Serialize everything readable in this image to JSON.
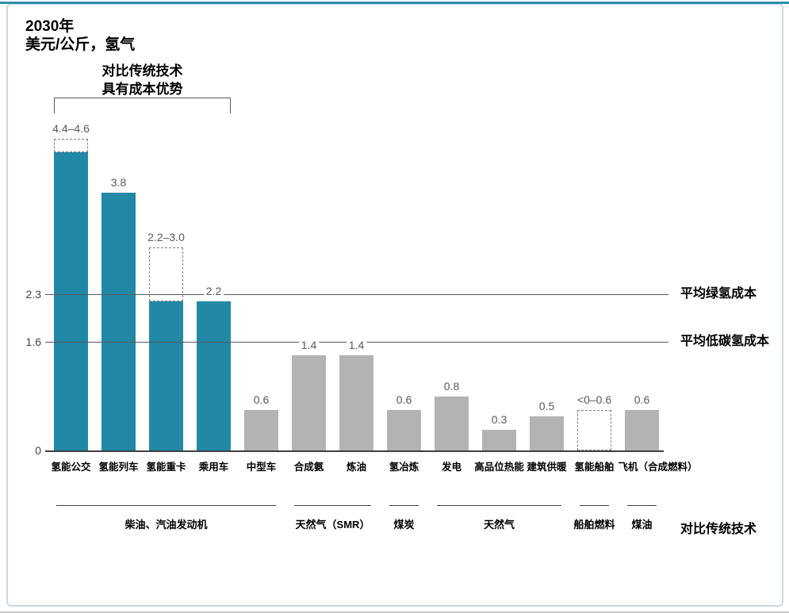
{
  "frame": {
    "top_accent_color": "#2E8FA8",
    "panel_border_color": "#C5D9E8",
    "bottom_line_color": "#CACACA"
  },
  "header": {
    "title_line1": "2030年",
    "title_line2": "美元/公斤，氢气"
  },
  "annotation": {
    "line1": "对比传统技术",
    "line2": "具有成本优势"
  },
  "bracket": {
    "from_bar": 0,
    "to_bar": 3
  },
  "chart_data": {
    "type": "bar",
    "title": "2030年",
    "subtitle": "美元/公斤，氢气",
    "ylabel": "美元/公斤，氢气",
    "ylim": [
      0,
      4.8
    ],
    "grid": false,
    "colors": {
      "highlight": "#2189A6",
      "normal": "#B3B3B3",
      "dash_outline": "#7F7F7F",
      "line": "#595959",
      "axis": "#404040"
    },
    "bars": [
      {
        "label": "氢能公交",
        "value_label": "4.4–4.6",
        "solid": 4.4,
        "dash_from": 4.4,
        "dash_to": 4.6,
        "style": "highlight"
      },
      {
        "label": "氢能列车",
        "value_label": "3.8",
        "solid": 3.8,
        "style": "highlight"
      },
      {
        "label": "氢能重卡",
        "value_label": "2.2–3.0",
        "solid": 2.2,
        "dash_from": 2.2,
        "dash_to": 3.0,
        "style": "highlight"
      },
      {
        "label": "乘用车",
        "value_label": "2.2",
        "solid": 2.2,
        "style": "highlight"
      },
      {
        "label": "中型车",
        "value_label": "0.6",
        "solid": 0.6,
        "style": "normal"
      },
      {
        "label": "合成氨",
        "value_label": "1.4",
        "solid": 1.4,
        "style": "normal"
      },
      {
        "label": "炼油",
        "value_label": "1.4",
        "solid": 1.4,
        "style": "normal"
      },
      {
        "label": "氢冶炼",
        "value_label": "0.6",
        "solid": 0.6,
        "style": "normal"
      },
      {
        "label": "发电",
        "value_label": "0.8",
        "solid": 0.8,
        "style": "normal"
      },
      {
        "label": "高品位热能",
        "value_label": "0.3",
        "solid": 0.3,
        "style": "normal"
      },
      {
        "label": "建筑供暖",
        "value_label": "0.5",
        "solid": 0.5,
        "style": "normal"
      },
      {
        "label": "氢能船舶",
        "value_label": "<0–0.6",
        "solid": 0,
        "dash_from": 0,
        "dash_to": 0.6,
        "style": "outline"
      },
      {
        "label": "飞机（合成燃料）",
        "value_label": "0.6",
        "solid": 0.6,
        "style": "normal"
      }
    ],
    "ref_lines": [
      {
        "value": 2.3,
        "tick": "2.3",
        "label": "平均绿氢成本"
      },
      {
        "value": 1.6,
        "tick": "1.6",
        "label": "平均低碳氢成本"
      }
    ],
    "baseline_tick": "0",
    "groups": [
      {
        "label": "柴油、汽油发动机",
        "from_bar": 0,
        "to_bar": 4
      },
      {
        "label": "天然气（SMR）",
        "from_bar": 5,
        "to_bar": 6
      },
      {
        "label": "煤炭",
        "from_bar": 7,
        "to_bar": 7
      },
      {
        "label": "天然气",
        "from_bar": 8,
        "to_bar": 10
      },
      {
        "label": "船舶燃料",
        "from_bar": 11,
        "to_bar": 11
      },
      {
        "label": "煤油",
        "from_bar": 12,
        "to_bar": 12
      }
    ],
    "groups_axis_label": "对比传统技术"
  }
}
